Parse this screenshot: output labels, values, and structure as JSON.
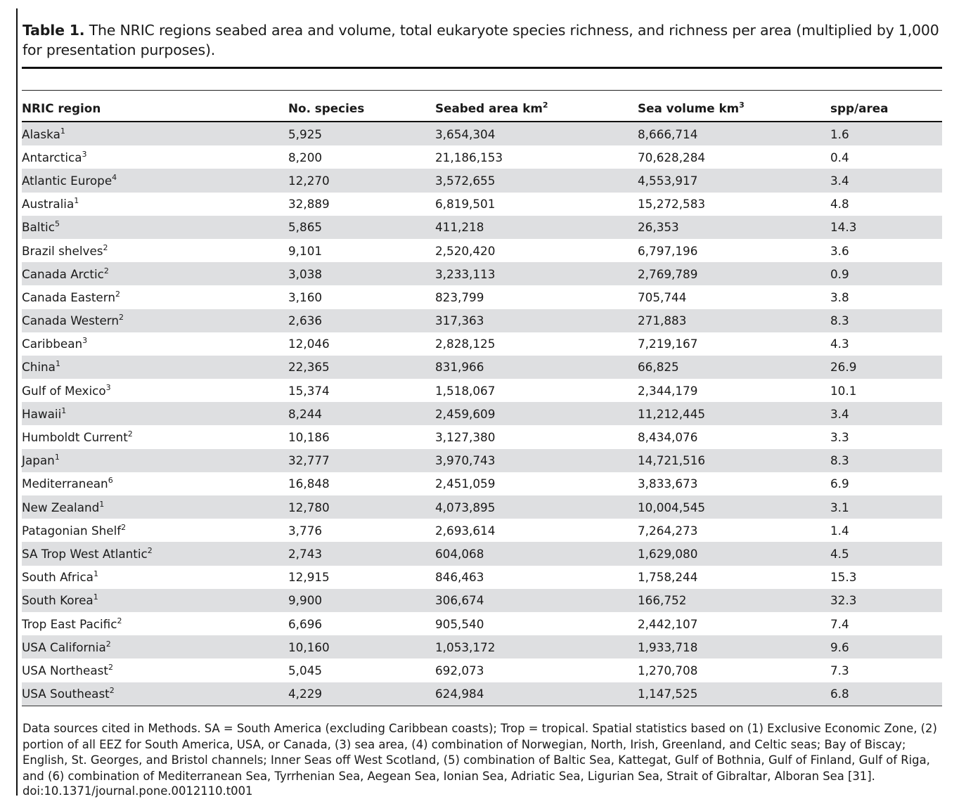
{
  "caption": {
    "label": "Table 1.",
    "text": " The NRIC regions seabed area and volume, total eukaryote species richness, and richness per area (multiplied by 1,000 for presentation purposes)."
  },
  "table": {
    "headers": [
      {
        "text": "NRIC region",
        "sup": ""
      },
      {
        "text": "No. species",
        "sup": ""
      },
      {
        "text": "Seabed area km",
        "sup": "2"
      },
      {
        "text": "Sea volume km",
        "sup": "3"
      },
      {
        "text": "spp/area",
        "sup": ""
      }
    ],
    "rows": [
      {
        "region": "Alaska",
        "sup": "1",
        "species": "5,925",
        "area": "3,654,304",
        "volume": "8,666,714",
        "spp_area": "1.6"
      },
      {
        "region": "Antarctica",
        "sup": "3",
        "species": "8,200",
        "area": "21,186,153",
        "volume": "70,628,284",
        "spp_area": "0.4"
      },
      {
        "region": "Atlantic Europe",
        "sup": "4",
        "species": "12,270",
        "area": "3,572,655",
        "volume": "4,553,917",
        "spp_area": "3.4"
      },
      {
        "region": "Australia",
        "sup": "1",
        "species": "32,889",
        "area": "6,819,501",
        "volume": "15,272,583",
        "spp_area": "4.8"
      },
      {
        "region": "Baltic",
        "sup": "5",
        "species": "5,865",
        "area": "411,218",
        "volume": "26,353",
        "spp_area": "14.3"
      },
      {
        "region": "Brazil shelves",
        "sup": "2",
        "species": "9,101",
        "area": "2,520,420",
        "volume": "6,797,196",
        "spp_area": "3.6"
      },
      {
        "region": "Canada Arctic",
        "sup": "2",
        "species": "3,038",
        "area": "3,233,113",
        "volume": "2,769,789",
        "spp_area": "0.9"
      },
      {
        "region": "Canada Eastern",
        "sup": "2",
        "species": "3,160",
        "area": "823,799",
        "volume": "705,744",
        "spp_area": "3.8"
      },
      {
        "region": "Canada Western",
        "sup": "2",
        "species": "2,636",
        "area": "317,363",
        "volume": "271,883",
        "spp_area": "8.3"
      },
      {
        "region": "Caribbean",
        "sup": "3",
        "species": "12,046",
        "area": "2,828,125",
        "volume": "7,219,167",
        "spp_area": "4.3"
      },
      {
        "region": "China",
        "sup": "1",
        "species": "22,365",
        "area": "831,966",
        "volume": "66,825",
        "spp_area": "26.9"
      },
      {
        "region": "Gulf of Mexico",
        "sup": "3",
        "species": "15,374",
        "area": "1,518,067",
        "volume": "2,344,179",
        "spp_area": "10.1"
      },
      {
        "region": "Hawaii",
        "sup": "1",
        "species": "8,244",
        "area": "2,459,609",
        "volume": "11,212,445",
        "spp_area": "3.4"
      },
      {
        "region": "Humboldt Current",
        "sup": "2",
        "species": "10,186",
        "area": "3,127,380",
        "volume": "8,434,076",
        "spp_area": "3.3"
      },
      {
        "region": "Japan",
        "sup": "1",
        "species": "32,777",
        "area": "3,970,743",
        "volume": "14,721,516",
        "spp_area": "8.3"
      },
      {
        "region": "Mediterranean",
        "sup": "6",
        "species": "16,848",
        "area": "2,451,059",
        "volume": "3,833,673",
        "spp_area": "6.9"
      },
      {
        "region": "New Zealand",
        "sup": "1",
        "species": "12,780",
        "area": "4,073,895",
        "volume": "10,004,545",
        "spp_area": "3.1"
      },
      {
        "region": "Patagonian Shelf",
        "sup": "2",
        "species": "3,776",
        "area": "2,693,614",
        "volume": "7,264,273",
        "spp_area": "1.4"
      },
      {
        "region": "SA Trop West Atlantic",
        "sup": "2",
        "species": "2,743",
        "area": "604,068",
        "volume": "1,629,080",
        "spp_area": "4.5"
      },
      {
        "region": "South Africa",
        "sup": "1",
        "species": "12,915",
        "area": "846,463",
        "volume": "1,758,244",
        "spp_area": "15.3"
      },
      {
        "region": "South Korea",
        "sup": "1",
        "species": "9,900",
        "area": "306,674",
        "volume": "166,752",
        "spp_area": "32.3"
      },
      {
        "region": "Trop East Pacific",
        "sup": "2",
        "species": "6,696",
        "area": "905,540",
        "volume": "2,442,107",
        "spp_area": "7.4"
      },
      {
        "region": "USA California",
        "sup": "2",
        "species": "10,160",
        "area": "1,053,172",
        "volume": "1,933,718",
        "spp_area": "9.6"
      },
      {
        "region": "USA Northeast",
        "sup": "2",
        "species": "5,045",
        "area": "692,073",
        "volume": "1,270,708",
        "spp_area": "7.3"
      },
      {
        "region": "USA Southeast",
        "sup": "2",
        "species": "4,229",
        "area": "624,984",
        "volume": "1,147,525",
        "spp_area": "6.8"
      }
    ]
  },
  "footnote": "Data sources cited in Methods. SA = South America (excluding Caribbean coasts); Trop = tropical. Spatial statistics based on (1) Exclusive Economic Zone, (2) portion of all EEZ for South America, USA, or Canada, (3) sea area, (4) combination of Norwegian, North, Irish, Greenland, and Celtic seas; Bay of Biscay; English, St. Georges, and Bristol channels; Inner Seas off West Scotland, (5) combination of Baltic Sea, Kattegat, Gulf of Bothnia, Gulf of Finland, Gulf of Riga, and (6) combination of Mediterranean Sea, Tyrrhenian Sea, Aegean Sea, Ionian Sea, Adriatic Sea, Ligurian Sea, Strait of Gibraltar, Alboran Sea [31].",
  "doi": "doi:10.1371/journal.pone.0012110.t001"
}
